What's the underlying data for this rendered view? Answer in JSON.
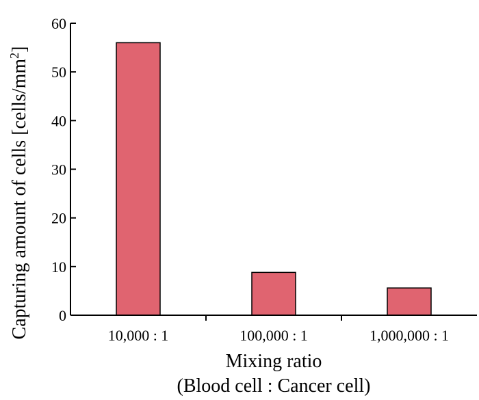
{
  "chart_data": {
    "type": "bar",
    "title": "",
    "xlabel": "Mixing ratio",
    "xlabel_line2": "(Blood cell : Cancer cell)",
    "ylabel": "Capturing amount of cells [cells/mm",
    "ylabel_superscript": "2",
    "ylabel_suffix": "]",
    "categories": [
      "10,000 : 1",
      "100,000 : 1",
      "1,000,000 : 1"
    ],
    "series": [
      {
        "values": [
          56,
          8.8,
          5.6
        ]
      }
    ],
    "ylim": [
      0,
      60
    ],
    "yticks": [
      0,
      10,
      20,
      30,
      40,
      50,
      60
    ],
    "ytick_labels": [
      "0",
      "10",
      "20",
      "30",
      "40",
      "50",
      "60"
    ],
    "grid": false,
    "legend": "none",
    "colors": {
      "bar_fill": "#e06470",
      "bar_edge": "#000000",
      "axis": "#000000"
    }
  }
}
